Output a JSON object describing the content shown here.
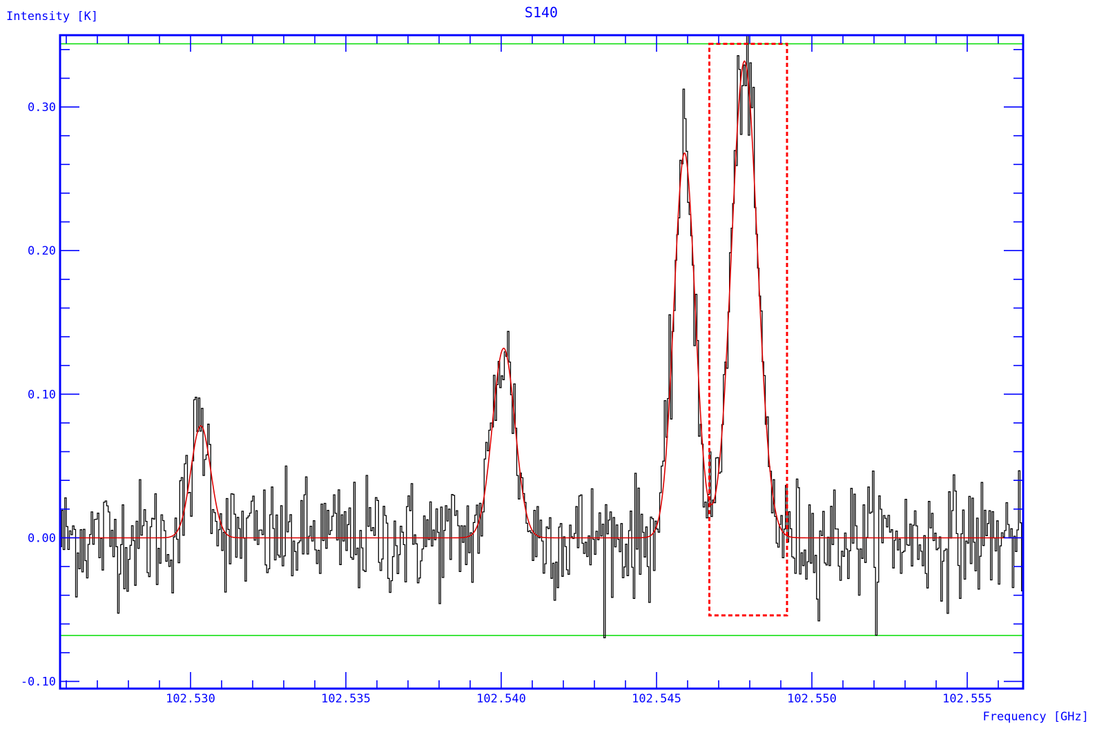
{
  "chart_data": {
    "type": "line",
    "title": "S140",
    "ylabel": "Intensity [K]",
    "xlabel": "Frequency   [GHz]",
    "xlim": [
      102.5258,
      102.5568
    ],
    "ylim": [
      -0.105,
      0.35
    ],
    "x_major_ticks": [
      102.53,
      102.535,
      102.54,
      102.545,
      102.55,
      102.555
    ],
    "x_tick_labels": [
      "102.530",
      "102.535",
      "102.540",
      "102.545",
      "102.550",
      "102.555"
    ],
    "y_major_ticks": [
      -0.1,
      0.0,
      0.1,
      0.2,
      0.3
    ],
    "y_tick_labels": [
      "-0.10",
      "0.00",
      "0.10",
      "0.20",
      "0.30"
    ],
    "grid": false,
    "reference_lines": {
      "upper_y": 0.344,
      "lower_y": -0.068,
      "color": "#00dd00"
    },
    "highlight_box": {
      "x_range": [
        102.5467,
        102.5492
      ],
      "y_range": [
        -0.054,
        0.344
      ],
      "color": "#ff0000",
      "style": "dashed"
    },
    "series": [
      {
        "name": "spectrum",
        "color": "#000000",
        "kind": "noisy histogram spectrum",
        "rms_noise": 0.02
      },
      {
        "name": "gaussian fit",
        "color": "#dd0000",
        "components": [
          {
            "center": 102.53033,
            "amplitude": 0.078,
            "fwhm": 0.00075
          },
          {
            "center": 102.54008,
            "amplitude": 0.132,
            "fwhm": 0.00085
          },
          {
            "center": 102.5459,
            "amplitude": 0.268,
            "fwhm": 0.0008
          },
          {
            "center": 102.54783,
            "amplitude": 0.332,
            "fwhm": 0.00098
          }
        ]
      }
    ],
    "colors": {
      "frame": "#0000ff",
      "text": "#0000ff",
      "spectrum": "#000000",
      "fit": "#dd0000",
      "reference": "#00dd00",
      "box": "#ff0000"
    }
  }
}
